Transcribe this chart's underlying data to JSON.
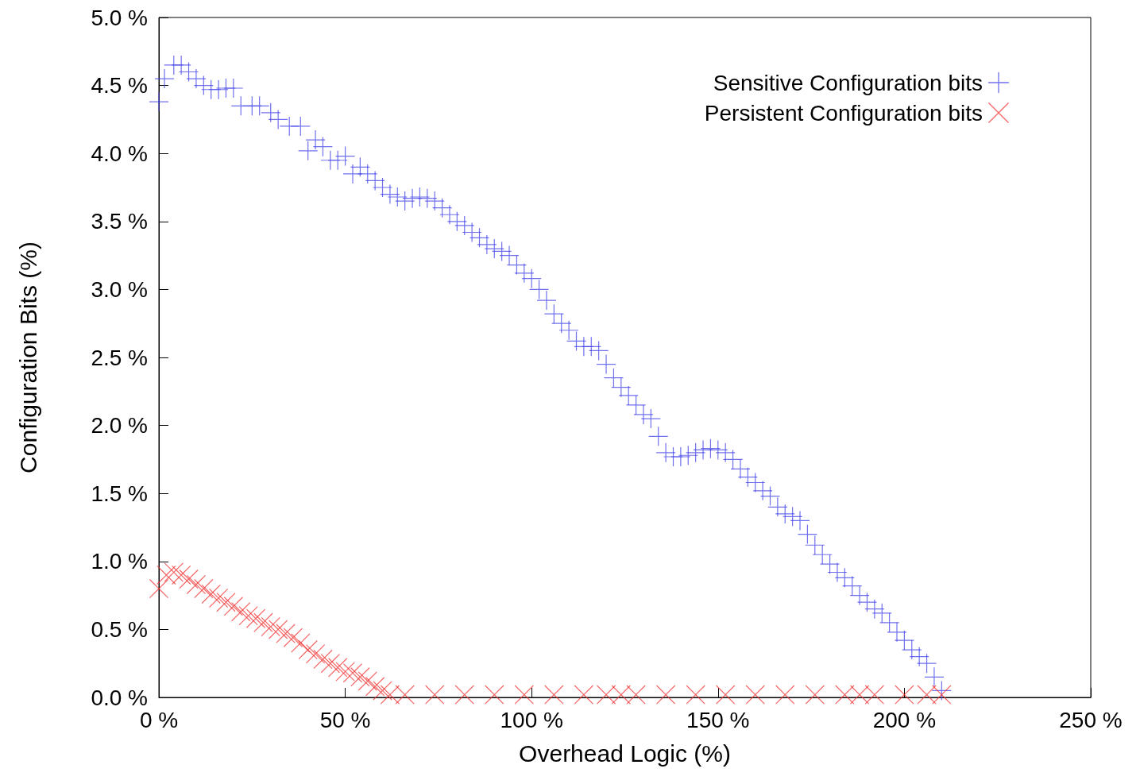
{
  "chart_data": {
    "type": "scatter",
    "xlabel": "Overhead Logic (%)",
    "ylabel": "Configuration Bits (%)",
    "xlim": [
      0,
      250
    ],
    "xticks": [
      {
        "value": 0,
        "label": "0 %"
      },
      {
        "value": 50,
        "label": "50 %"
      },
      {
        "value": 100,
        "label": "100 %"
      },
      {
        "value": 150,
        "label": "150 %"
      },
      {
        "value": 200,
        "label": "200 %"
      },
      {
        "value": 250,
        "label": "250 %"
      }
    ],
    "ylim": [
      0,
      5
    ],
    "yticks": [
      {
        "value": 0,
        "label": "0.0 %"
      },
      {
        "value": 0.5,
        "label": "0.5 %"
      },
      {
        "value": 1,
        "label": "1.0 %"
      },
      {
        "value": 1.5,
        "label": "1.5 %"
      },
      {
        "value": 2,
        "label": "2.0 %"
      },
      {
        "value": 2.5,
        "label": "2.5 %"
      },
      {
        "value": 3,
        "label": "3.0 %"
      },
      {
        "value": 3.5,
        "label": "3.5 %"
      },
      {
        "value": 4,
        "label": "4.0 %"
      },
      {
        "value": 4.5,
        "label": "4.5 %"
      },
      {
        "value": 5,
        "label": "5.0 %"
      }
    ],
    "grid": false,
    "legend": "top right",
    "series": [
      {
        "name": "Sensitive Configuration bits",
        "color": "#4040e8",
        "marker": "cross",
        "x": [
          0,
          1.5,
          4,
          6,
          8,
          10,
          12,
          14,
          16,
          18,
          20,
          22,
          25,
          27,
          30,
          32,
          35,
          38,
          40,
          42,
          44,
          46,
          48,
          50,
          52,
          54,
          56,
          58,
          60,
          62,
          64,
          66,
          68,
          70,
          72,
          74,
          76,
          78,
          80,
          82,
          84,
          86,
          88,
          90,
          92,
          94,
          96,
          98,
          100,
          102,
          104,
          106,
          108,
          110,
          112,
          114,
          116,
          118,
          120,
          122,
          124,
          126,
          128,
          130,
          132,
          134,
          136,
          138,
          140,
          142,
          144,
          146,
          148,
          150,
          152,
          154,
          156,
          158,
          160,
          162,
          164,
          166,
          168,
          170,
          172,
          174,
          176,
          178,
          180,
          182,
          184,
          186,
          188,
          190,
          192,
          194,
          196,
          198,
          200,
          202,
          204,
          206,
          208,
          210
        ],
        "values": [
          4.38,
          4.55,
          4.65,
          4.65,
          4.6,
          4.55,
          4.5,
          4.47,
          4.47,
          4.48,
          4.48,
          4.35,
          4.35,
          4.35,
          4.3,
          4.25,
          4.2,
          4.2,
          4.02,
          4.1,
          4.05,
          3.95,
          3.95,
          3.98,
          3.85,
          3.9,
          3.85,
          3.8,
          3.75,
          3.7,
          3.68,
          3.65,
          3.67,
          3.68,
          3.67,
          3.65,
          3.6,
          3.55,
          3.5,
          3.47,
          3.42,
          3.38,
          3.33,
          3.3,
          3.28,
          3.25,
          3.18,
          3.12,
          3.08,
          3.0,
          2.92,
          2.82,
          2.75,
          2.7,
          2.62,
          2.58,
          2.58,
          2.55,
          2.45,
          2.35,
          2.28,
          2.22,
          2.15,
          2.08,
          2.05,
          1.92,
          1.8,
          1.77,
          1.77,
          1.78,
          1.8,
          1.82,
          1.83,
          1.82,
          1.8,
          1.75,
          1.68,
          1.62,
          1.58,
          1.52,
          1.48,
          1.4,
          1.35,
          1.33,
          1.3,
          1.2,
          1.12,
          1.05,
          0.98,
          0.92,
          0.88,
          0.82,
          0.75,
          0.7,
          0.65,
          0.62,
          0.55,
          0.48,
          0.42,
          0.35,
          0.3,
          0.25,
          0.15,
          0.05
        ]
      },
      {
        "name": "Persistent Configuration bits",
        "color": "#f03030",
        "marker": "x",
        "x": [
          0,
          2,
          4,
          6,
          8,
          10,
          12,
          14,
          16,
          18,
          20,
          22,
          24,
          26,
          28,
          30,
          32,
          34,
          36,
          38,
          40,
          42,
          44,
          46,
          48,
          50,
          52,
          54,
          56,
          58,
          60,
          62,
          66,
          74,
          82,
          90,
          98,
          106,
          114,
          120,
          124,
          128,
          136,
          144,
          152,
          160,
          168,
          176,
          184,
          188,
          192,
          200,
          206,
          210
        ],
        "values": [
          0.8,
          0.9,
          0.92,
          0.9,
          0.87,
          0.83,
          0.8,
          0.76,
          0.73,
          0.7,
          0.67,
          0.63,
          0.6,
          0.58,
          0.55,
          0.52,
          0.5,
          0.47,
          0.44,
          0.4,
          0.35,
          0.32,
          0.28,
          0.25,
          0.22,
          0.19,
          0.18,
          0.15,
          0.12,
          0.08,
          0.05,
          0.02,
          0.02,
          0.02,
          0.02,
          0.02,
          0.02,
          0.02,
          0.02,
          0.02,
          0.02,
          0.02,
          0.02,
          0.02,
          0.02,
          0.02,
          0.02,
          0.02,
          0.02,
          0.02,
          0.02,
          0.02,
          0.02,
          0.02
        ]
      }
    ]
  }
}
